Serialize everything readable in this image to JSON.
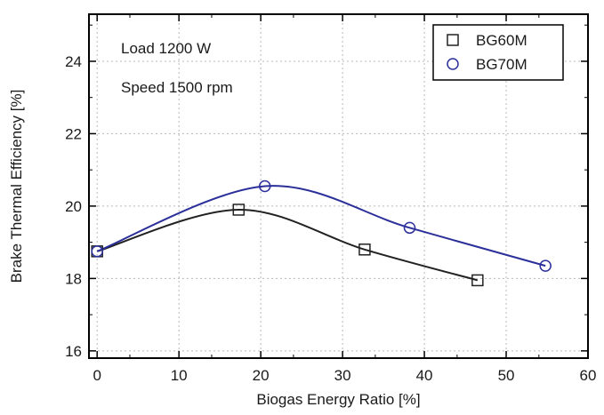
{
  "chart_data": {
    "type": "line",
    "title": "",
    "xlabel": "Biogas Energy Ratio [%]",
    "ylabel": "Brake Thermal Efficiency [%]",
    "xlim": [
      -1,
      60
    ],
    "ylim": [
      15.8,
      25.3
    ],
    "xticks": [
      0,
      10,
      20,
      30,
      40,
      50,
      60
    ],
    "yticks": [
      16,
      18,
      20,
      22,
      24
    ],
    "grid": true,
    "legend_position": "top-right",
    "annotations": [
      "Load 1200 W",
      "Speed 1500 rpm"
    ],
    "series": [
      {
        "name": "BG60M",
        "marker": "square",
        "color": "#222222",
        "points": [
          [
            0,
            18.75
          ],
          [
            17.3,
            19.9
          ],
          [
            32.7,
            18.8
          ],
          [
            46.5,
            17.95
          ]
        ]
      },
      {
        "name": "BG70M",
        "marker": "circle",
        "color": "#2b2f9a",
        "points": [
          [
            0,
            18.75
          ],
          [
            20.5,
            20.55
          ],
          [
            38.2,
            19.4
          ],
          [
            54.8,
            18.35
          ]
        ]
      }
    ]
  }
}
